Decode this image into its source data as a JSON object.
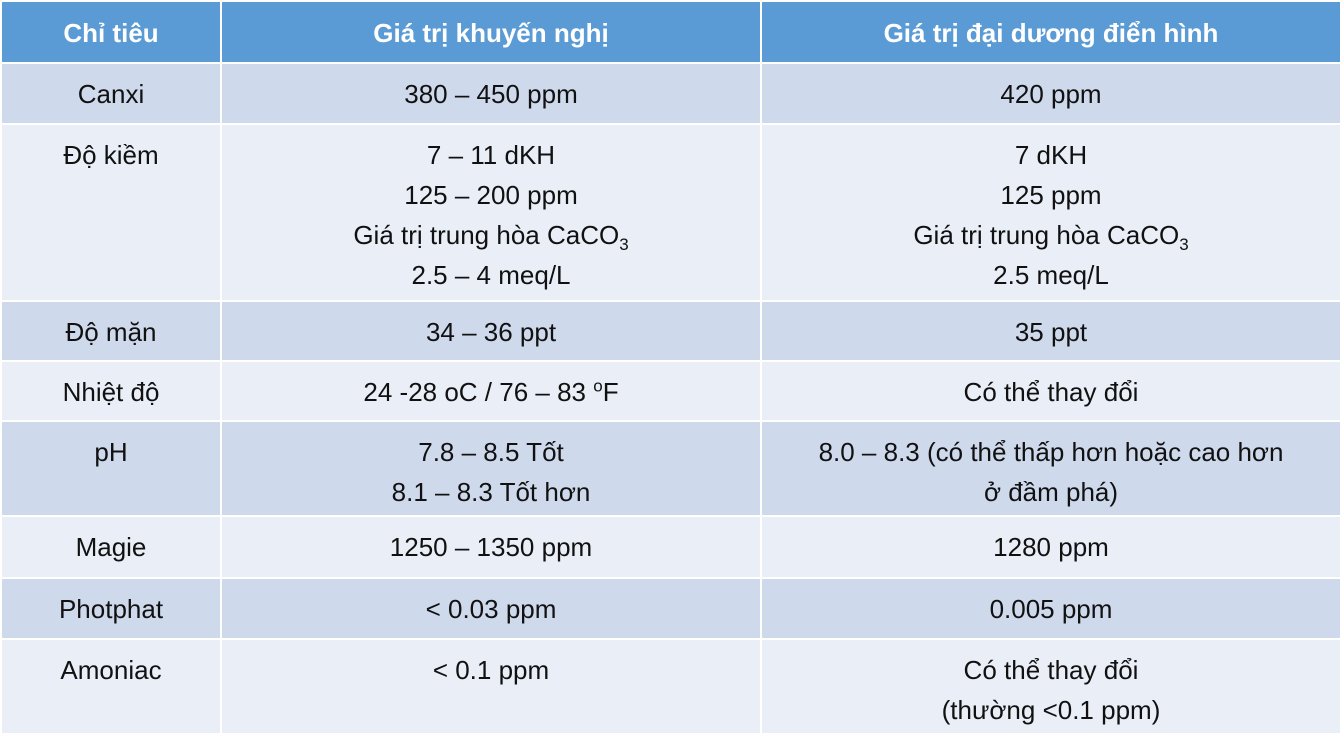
{
  "table": {
    "header": [
      "Chỉ tiêu",
      "Giá trị khuyến nghị",
      "Giá trị đại dương điển hình"
    ],
    "rows": [
      [
        [
          [
            "Canxi"
          ]
        ],
        [
          [
            "380 – 450 ppm"
          ]
        ],
        [
          [
            "420 ppm"
          ]
        ]
      ],
      [
        [
          [
            "Độ kiềm"
          ]
        ],
        [
          [
            "7 – 11 dKH"
          ],
          [
            "125 – 200 ppm"
          ],
          [
            "Giá trị trung hòa CaCO",
            {
              "sub": "3"
            }
          ],
          [
            "2.5 – 4 meq/L"
          ]
        ],
        [
          [
            "7 dKH"
          ],
          [
            "125 ppm"
          ],
          [
            "Giá trị trung hòa CaCO",
            {
              "sub": "3"
            }
          ],
          [
            "2.5 meq/L"
          ]
        ]
      ],
      [
        [
          [
            "Độ mặn"
          ]
        ],
        [
          [
            "34 – 36 ppt"
          ]
        ],
        [
          [
            "35 ppt"
          ]
        ]
      ],
      [
        [
          [
            "Nhiệt độ"
          ]
        ],
        [
          [
            "24 -28 oC / 76 – 83 ",
            {
              "sup": "o"
            },
            "F"
          ]
        ],
        [
          [
            "Có thể thay đổi"
          ]
        ]
      ],
      [
        [
          [
            "pH"
          ]
        ],
        [
          [
            "7.8 – 8.5 Tốt"
          ],
          [
            "8.1 – 8.3 Tốt hơn"
          ]
        ],
        [
          [
            "8.0 – 8.3 (có thể thấp hơn hoặc cao hơn"
          ],
          [
            "ở đầm phá)"
          ]
        ]
      ],
      [
        [
          [
            "Magie"
          ]
        ],
        [
          [
            "1250 – 1350 ppm"
          ]
        ],
        [
          [
            "1280 ppm"
          ]
        ]
      ],
      [
        [
          [
            "Photphat"
          ]
        ],
        [
          [
            "< 0.03 ppm"
          ]
        ],
        [
          [
            "0.005 ppm"
          ]
        ]
      ],
      [
        [
          [
            "Amoniac"
          ]
        ],
        [
          [
            "< 0.1 ppm"
          ]
        ],
        [
          [
            "Có thể thay đổi"
          ],
          [
            "(thường <0.1 ppm)"
          ]
        ]
      ]
    ]
  }
}
